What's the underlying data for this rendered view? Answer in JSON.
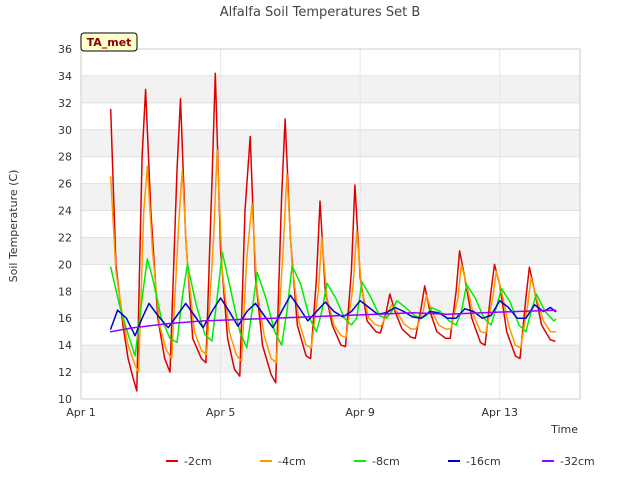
{
  "chart_data": {
    "type": "line",
    "title": "Alfalfa Soil Temperatures Set B",
    "xlabel": "Time",
    "ylabel": "Soil Temperature (C)",
    "badge": "TA_met",
    "xlim": [
      0,
      14.3
    ],
    "ylim": [
      10,
      36
    ],
    "yticks": [
      10,
      12,
      14,
      16,
      18,
      20,
      22,
      24,
      26,
      28,
      30,
      32,
      34,
      36
    ],
    "xticks": [
      {
        "pos": 0,
        "label": "Apr 1"
      },
      {
        "pos": 4,
        "label": "Apr 5"
      },
      {
        "pos": 8,
        "label": "Apr 9"
      },
      {
        "pos": 12,
        "label": "Apr 13"
      }
    ],
    "grid": true,
    "legend_position": "bottom",
    "series": [
      {
        "name": "-2cm",
        "color": "#dd0000",
        "x": [
          0.85,
          1.0,
          1.2,
          1.35,
          1.5,
          1.6,
          1.75,
          1.85,
          2.0,
          2.2,
          2.4,
          2.55,
          2.75,
          2.85,
          3.0,
          3.2,
          3.45,
          3.58,
          3.75,
          3.85,
          4.0,
          4.2,
          4.4,
          4.55,
          4.7,
          4.85,
          5.0,
          5.2,
          5.45,
          5.58,
          5.75,
          5.85,
          6.0,
          6.2,
          6.45,
          6.58,
          6.75,
          6.85,
          7.0,
          7.2,
          7.45,
          7.58,
          7.75,
          7.85,
          8.0,
          8.2,
          8.45,
          8.58,
          8.75,
          8.85,
          9.0,
          9.2,
          9.45,
          9.58,
          9.75,
          9.85,
          10.0,
          10.2,
          10.45,
          10.58,
          10.75,
          10.85,
          11.0,
          11.2,
          11.45,
          11.58,
          11.75,
          11.85,
          12.0,
          12.2,
          12.45,
          12.58,
          12.75,
          12.85,
          13.0,
          13.2,
          13.45,
          13.58
        ],
        "y": [
          31.5,
          20.0,
          15.5,
          13.0,
          11.5,
          10.6,
          28.0,
          33.0,
          24.0,
          16.0,
          13.0,
          12.0,
          27.0,
          32.3,
          22.0,
          14.5,
          13.0,
          12.7,
          26.0,
          34.2,
          21.0,
          14.5,
          12.2,
          11.7,
          24.0,
          29.5,
          19.0,
          14.0,
          11.8,
          11.2,
          25.0,
          30.8,
          22.0,
          15.5,
          13.2,
          13.0,
          19.0,
          24.7,
          18.0,
          15.5,
          14.0,
          13.9,
          19.5,
          25.9,
          19.0,
          15.8,
          15.0,
          14.9,
          16.5,
          17.8,
          16.5,
          15.2,
          14.6,
          14.5,
          16.8,
          18.4,
          16.5,
          15.0,
          14.5,
          14.5,
          18.0,
          21.0,
          19.0,
          16.0,
          14.2,
          14.0,
          18.0,
          20.0,
          18.5,
          15.0,
          13.2,
          13.0,
          17.5,
          19.8,
          18.0,
          15.5,
          14.4,
          14.3
        ]
      },
      {
        "name": "-4cm",
        "color": "#ff9900",
        "x": [
          0.85,
          1.0,
          1.2,
          1.35,
          1.55,
          1.65,
          1.8,
          1.9,
          2.05,
          2.25,
          2.45,
          2.6,
          2.8,
          2.9,
          3.05,
          3.25,
          3.45,
          3.6,
          3.8,
          3.9,
          4.05,
          4.25,
          4.45,
          4.6,
          4.75,
          4.9,
          5.05,
          5.25,
          5.45,
          5.6,
          5.8,
          5.9,
          6.05,
          6.25,
          6.45,
          6.6,
          6.8,
          6.9,
          7.05,
          7.25,
          7.45,
          7.6,
          7.8,
          7.9,
          8.05,
          8.25,
          8.45,
          8.6,
          8.8,
          8.9,
          9.05,
          9.25,
          9.45,
          9.6,
          9.8,
          9.9,
          10.05,
          10.25,
          10.45,
          10.6,
          10.8,
          10.9,
          11.05,
          11.25,
          11.45,
          11.6,
          11.8,
          11.9,
          12.05,
          12.25,
          12.45,
          12.6,
          12.8,
          12.9,
          13.05,
          13.25,
          13.45,
          13.6
        ],
        "y": [
          26.5,
          19.5,
          16.0,
          14.0,
          12.5,
          12.0,
          24.0,
          27.3,
          21.0,
          15.5,
          13.6,
          13.0,
          23.0,
          27.0,
          20.0,
          15.0,
          13.6,
          13.3,
          22.0,
          28.5,
          19.5,
          15.0,
          13.3,
          12.8,
          20.5,
          24.5,
          18.0,
          14.7,
          13.0,
          12.7,
          21.5,
          26.7,
          20.0,
          15.7,
          14.0,
          13.8,
          18.0,
          22.0,
          17.5,
          15.5,
          14.7,
          14.6,
          18.5,
          22.5,
          18.0,
          16.0,
          15.5,
          15.4,
          16.5,
          17.0,
          16.5,
          15.6,
          15.2,
          15.2,
          16.5,
          17.7,
          16.5,
          15.5,
          15.2,
          15.2,
          17.5,
          20.0,
          18.5,
          16.2,
          15.0,
          14.9,
          17.5,
          19.5,
          18.0,
          15.5,
          14.0,
          13.8,
          17.0,
          19.0,
          17.5,
          15.8,
          15.0,
          15.0
        ]
      },
      {
        "name": "-8cm",
        "color": "#00ee00",
        "x": [
          0.85,
          1.1,
          1.35,
          1.55,
          1.75,
          1.9,
          2.05,
          2.3,
          2.55,
          2.75,
          2.9,
          3.05,
          3.3,
          3.55,
          3.75,
          3.9,
          4.05,
          4.3,
          4.55,
          4.75,
          4.9,
          5.05,
          5.3,
          5.55,
          5.75,
          5.9,
          6.05,
          6.3,
          6.55,
          6.75,
          6.9,
          7.05,
          7.3,
          7.55,
          7.75,
          7.9,
          8.05,
          8.3,
          8.55,
          8.75,
          8.9,
          9.05,
          9.3,
          9.55,
          9.75,
          9.9,
          10.05,
          10.3,
          10.55,
          10.75,
          10.9,
          11.05,
          11.3,
          11.55,
          11.75,
          11.9,
          12.05,
          12.3,
          12.55,
          12.75,
          12.9,
          13.05,
          13.3,
          13.55,
          13.6
        ],
        "y": [
          19.8,
          17.0,
          14.8,
          13.2,
          17.5,
          20.4,
          19.0,
          16.0,
          14.5,
          14.2,
          17.5,
          20.0,
          17.0,
          14.8,
          14.3,
          17.5,
          20.9,
          18.0,
          15.0,
          13.8,
          16.5,
          19.4,
          17.5,
          15.0,
          14.0,
          16.5,
          19.9,
          18.5,
          16.0,
          15.0,
          16.5,
          18.6,
          17.5,
          16.0,
          15.5,
          16.0,
          18.7,
          17.6,
          16.2,
          16.0,
          16.5,
          17.3,
          16.8,
          16.2,
          16.0,
          16.2,
          16.8,
          16.5,
          15.8,
          15.5,
          16.5,
          18.5,
          17.5,
          16.0,
          15.5,
          16.8,
          18.2,
          17.2,
          15.5,
          15.0,
          16.5,
          17.8,
          16.5,
          15.8,
          15.9
        ]
      },
      {
        "name": "-16cm",
        "color": "#0000cc",
        "x": [
          0.85,
          1.05,
          1.3,
          1.55,
          1.75,
          1.95,
          2.2,
          2.5,
          2.75,
          3.0,
          3.25,
          3.5,
          3.75,
          4.0,
          4.25,
          4.5,
          4.75,
          5.0,
          5.25,
          5.5,
          5.75,
          6.0,
          6.25,
          6.5,
          6.75,
          7.0,
          7.25,
          7.5,
          7.75,
          8.0,
          8.25,
          8.5,
          8.75,
          9.0,
          9.25,
          9.5,
          9.75,
          10.0,
          10.25,
          10.5,
          10.75,
          11.0,
          11.25,
          11.5,
          11.75,
          12.0,
          12.25,
          12.5,
          12.75,
          13.0,
          13.25,
          13.45,
          13.6
        ],
        "y": [
          15.2,
          16.6,
          16.0,
          14.7,
          16.0,
          17.1,
          16.2,
          15.3,
          16.2,
          17.1,
          16.2,
          15.3,
          16.5,
          17.5,
          16.5,
          15.4,
          16.5,
          17.1,
          16.2,
          15.3,
          16.5,
          17.7,
          16.8,
          15.8,
          16.5,
          17.2,
          16.5,
          16.1,
          16.5,
          17.3,
          16.8,
          16.3,
          16.4,
          16.8,
          16.5,
          16.1,
          16.0,
          16.5,
          16.4,
          16.0,
          16.0,
          16.7,
          16.5,
          16.0,
          16.2,
          17.3,
          16.8,
          16.0,
          16.0,
          17.0,
          16.5,
          16.8,
          16.5
        ]
      },
      {
        "name": "-32cm",
        "color": "#9900ff",
        "x": [
          0.85,
          1.5,
          2.5,
          3.5,
          4.5,
          5.5,
          6.5,
          7.5,
          8.5,
          9.5,
          10.5,
          11.5,
          12.5,
          13.6
        ],
        "y": [
          15.0,
          15.3,
          15.6,
          15.8,
          15.9,
          16.0,
          16.1,
          16.2,
          16.3,
          16.4,
          16.3,
          16.4,
          16.5,
          16.6
        ]
      }
    ]
  }
}
